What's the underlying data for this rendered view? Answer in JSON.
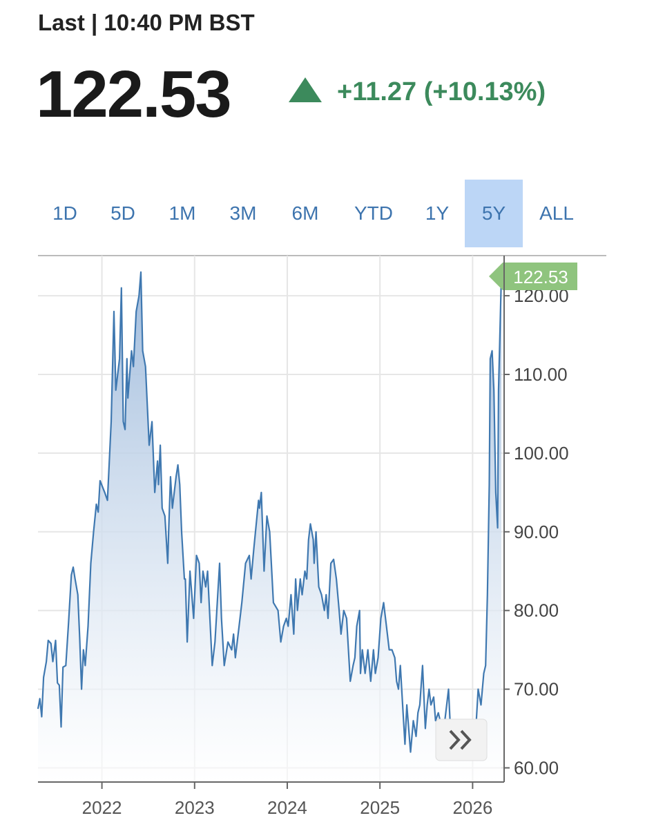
{
  "header": {
    "last_label": "Last | 10:40 PM BST",
    "price": "122.53",
    "change": "+11.27 (+10.13%)",
    "ranges": [
      "1D",
      "5D",
      "1M",
      "3M",
      "6M",
      "YTD",
      "1Y",
      "5Y",
      "ALL"
    ],
    "selected_range": "5Y"
  },
  "chart_data": {
    "type": "area",
    "color": "#3f78b0",
    "grid": true,
    "x": [
      2021.31,
      2021.33,
      2021.35,
      2021.37,
      2021.4,
      2021.42,
      2021.45,
      2021.47,
      2021.5,
      2021.52,
      2021.54,
      2021.56,
      2021.58,
      2021.61,
      2021.64,
      2021.67,
      2021.69,
      2021.71,
      2021.74,
      2021.76,
      2021.78,
      2021.8,
      2021.82,
      2021.85,
      2021.88,
      2021.91,
      2021.94,
      2021.96,
      2021.98,
      2022.03,
      2022.06,
      2022.1,
      2022.13,
      2022.15,
      2022.19,
      2022.21,
      2022.23,
      2022.25,
      2022.27,
      2022.28,
      2022.32,
      2022.34,
      2022.37,
      2022.4,
      2022.42,
      2022.44,
      2022.47,
      2022.51,
      2022.54,
      2022.57,
      2022.6,
      2022.61,
      2022.63,
      2022.65,
      2022.68,
      2022.71,
      2022.72,
      2022.74,
      2022.76,
      2022.8,
      2022.82,
      2022.84,
      2022.86,
      2022.89,
      2022.9,
      2022.92,
      2022.95,
      2022.99,
      2023.02,
      2023.05,
      2023.07,
      2023.09,
      2023.12,
      2023.14,
      2023.19,
      2023.22,
      2023.25,
      2023.27,
      2023.29,
      2023.32,
      2023.36,
      2023.4,
      2023.42,
      2023.44,
      2023.48,
      2023.51,
      2023.55,
      2023.59,
      2023.61,
      2023.64,
      2023.69,
      2023.7,
      2023.72,
      2023.75,
      2023.78,
      2023.81,
      2023.85,
      2023.9,
      2023.93,
      2023.96,
      2023.99,
      2024.01,
      2024.04,
      2024.07,
      2024.09,
      2024.11,
      2024.14,
      2024.16,
      2024.19,
      2024.21,
      2024.23,
      2024.25,
      2024.28,
      2024.29,
      2024.31,
      2024.34,
      2024.37,
      2024.4,
      2024.42,
      2024.44,
      2024.47,
      2024.5,
      2024.53,
      2024.56,
      2024.58,
      2024.61,
      2024.64,
      2024.68,
      2024.71,
      2024.73,
      2024.75,
      2024.78,
      2024.79,
      2024.81,
      2024.84,
      2024.87,
      2024.9,
      2024.93,
      2024.95,
      2024.98,
      2025.01,
      2025.04,
      2025.07,
      2025.1,
      2025.13,
      2025.16,
      2025.18,
      2025.2,
      2025.22,
      2025.25,
      2025.27,
      2025.29,
      2025.33,
      2025.36,
      2025.39,
      2025.41,
      2025.43,
      2025.46,
      2025.49,
      2025.51,
      2025.53,
      2025.55,
      2025.58,
      2025.6,
      2025.63,
      2025.65,
      2025.68,
      2025.71,
      2025.74,
      2025.76,
      2025.79,
      2025.83,
      2025.9,
      2025.96,
      2026.0,
      2026.03,
      2026.06,
      2026.09,
      2026.12,
      2026.14,
      2026.16,
      2026.18,
      2026.19,
      2026.21,
      2026.23,
      2026.25,
      2026.27,
      2026.28,
      2026.31
    ],
    "values": [
      67.5,
      68.8,
      66.5,
      71.5,
      73.5,
      76.2,
      75.8,
      73.5,
      76.2,
      70.8,
      70.5,
      65.2,
      72.8,
      73.0,
      78.5,
      84.5,
      85.5,
      84.0,
      82.0,
      76.5,
      70.0,
      75.0,
      73.0,
      78.0,
      86.0,
      90.0,
      93.5,
      92.5,
      96.5,
      95.0,
      94.0,
      104.0,
      118.0,
      108.0,
      112.0,
      121.0,
      104.0,
      103.0,
      112.0,
      107.0,
      113.0,
      111.0,
      118.0,
      120.0,
      123.0,
      113.0,
      111.0,
      101.0,
      104.0,
      95.0,
      99.0,
      96.0,
      101.0,
      93.0,
      92.0,
      86.0,
      90.0,
      97.0,
      93.0,
      97.0,
      98.5,
      96.0,
      90.0,
      84.0,
      84.0,
      76.0,
      85.0,
      79.0,
      87.0,
      86.0,
      81.0,
      85.0,
      83.0,
      85.0,
      73.0,
      76.0,
      82.0,
      86.0,
      79.0,
      73.0,
      76.0,
      75.0,
      77.0,
      74.0,
      78.0,
      81.0,
      86.0,
      87.0,
      84.0,
      88.0,
      94.0,
      93.0,
      95.0,
      85.0,
      92.0,
      90.0,
      81.0,
      80.0,
      76.0,
      78.0,
      79.0,
      78.0,
      82.0,
      77.0,
      84.0,
      80.0,
      84.0,
      82.0,
      85.0,
      84.0,
      89.0,
      91.0,
      89.0,
      86.0,
      90.0,
      83.0,
      82.0,
      80.0,
      82.0,
      79.0,
      86.0,
      86.5,
      84.0,
      80.0,
      77.0,
      80.0,
      79.0,
      71.0,
      73.0,
      74.0,
      78.0,
      80.0,
      72.0,
      75.0,
      72.0,
      75.0,
      71.0,
      75.0,
      72.0,
      74.0,
      79.0,
      81.0,
      78.0,
      75.0,
      75.0,
      74.0,
      71.0,
      70.0,
      73.0,
      67.0,
      63.0,
      68.0,
      62.0,
      66.0,
      64.0,
      67.0,
      68.0,
      73.0,
      65.0,
      68.0,
      70.0,
      68.0,
      69.0,
      66.0,
      67.0,
      66.0,
      64.0,
      67.0,
      70.0,
      65.0,
      61.0,
      62.0,
      62.0,
      61.0,
      61.5,
      64.0,
      70.0,
      68.0,
      72.0,
      73.0,
      82.0,
      96.0,
      112.0,
      113.0,
      108.0,
      95.0,
      90.5,
      108.0,
      122.53
    ],
    "xlim": [
      2021.31,
      2026.34
    ],
    "ylim": [
      58.2,
      125.1
    ],
    "xticks": [
      2022,
      2023,
      2024,
      2025,
      2026
    ],
    "yticks": [
      {
        "value": 60,
        "label": "60.00"
      },
      {
        "value": 70,
        "label": "70.00"
      },
      {
        "value": 80,
        "label": "80.00"
      },
      {
        "value": 90,
        "label": "90.00"
      },
      {
        "value": 100,
        "label": "100.00"
      },
      {
        "value": 110,
        "label": "110.00"
      },
      {
        "value": 120,
        "label": "120.00"
      }
    ]
  }
}
